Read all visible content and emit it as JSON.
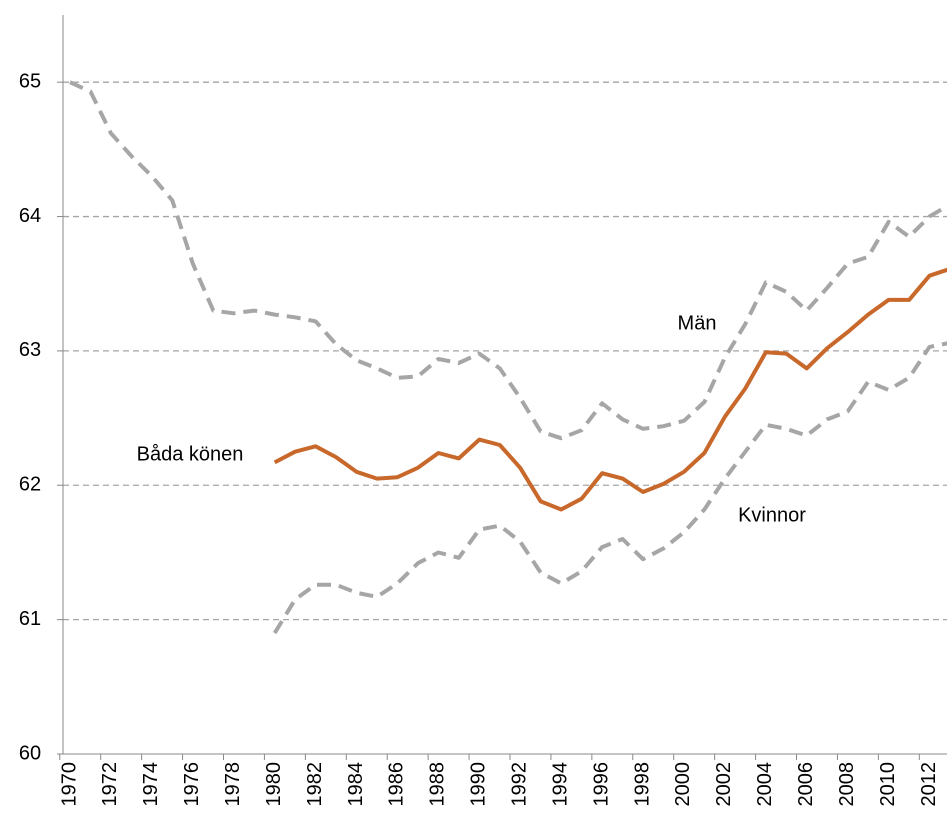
{
  "chart_data": {
    "type": "line",
    "x": [
      1970,
      1971,
      1972,
      1973,
      1974,
      1975,
      1976,
      1977,
      1978,
      1979,
      1980,
      1981,
      1982,
      1983,
      1984,
      1985,
      1986,
      1987,
      1988,
      1989,
      1990,
      1991,
      1992,
      1993,
      1994,
      1995,
      1996,
      1997,
      1998,
      1999,
      2000,
      2001,
      2002,
      2003,
      2004,
      2005,
      2006,
      2007,
      2008,
      2009,
      2010,
      2011,
      2012,
      2013
    ],
    "xlim": [
      1970,
      2013
    ],
    "xticks": [
      1970,
      1972,
      1974,
      1976,
      1978,
      1980,
      1982,
      1984,
      1986,
      1988,
      1990,
      1992,
      1994,
      1996,
      1998,
      2000,
      2002,
      2004,
      2006,
      2008,
      2010,
      2012
    ],
    "ylim": [
      60,
      65.5
    ],
    "yticks": [
      60,
      61,
      62,
      63,
      64,
      65
    ],
    "grid": true,
    "series": [
      {
        "name": "Män",
        "color": "#a6a6a6",
        "dashed": true,
        "values": [
          65.0,
          64.93,
          64.62,
          64.45,
          64.3,
          64.12,
          63.65,
          63.3,
          63.28,
          63.3,
          63.27,
          63.25,
          63.22,
          63.05,
          62.93,
          62.87,
          62.8,
          62.81,
          62.94,
          62.91,
          62.98,
          62.87,
          62.65,
          62.4,
          62.35,
          62.41,
          62.61,
          62.49,
          62.42,
          62.44,
          62.48,
          62.62,
          62.95,
          63.2,
          63.51,
          63.44,
          63.3,
          63.47,
          63.65,
          63.7,
          63.96,
          63.85,
          64.0,
          64.09
        ]
      },
      {
        "name": "Båda könen",
        "color": "#c8682a",
        "dashed": false,
        "values": [
          null,
          null,
          null,
          null,
          null,
          null,
          null,
          null,
          null,
          null,
          62.17,
          62.25,
          62.29,
          62.21,
          62.1,
          62.05,
          62.06,
          62.13,
          62.24,
          62.2,
          62.34,
          62.3,
          62.13,
          61.88,
          61.82,
          61.9,
          62.09,
          62.05,
          61.95,
          62.01,
          62.1,
          62.24,
          62.51,
          62.72,
          62.99,
          62.98,
          62.87,
          63.02,
          63.14,
          63.27,
          63.38,
          63.38,
          63.56,
          63.61
        ]
      },
      {
        "name": "Kvinnor",
        "color": "#a6a6a6",
        "dashed": true,
        "values": [
          null,
          null,
          null,
          null,
          null,
          null,
          null,
          null,
          null,
          null,
          60.9,
          61.15,
          61.26,
          61.26,
          61.2,
          61.17,
          61.27,
          61.42,
          61.5,
          61.46,
          61.67,
          61.7,
          61.58,
          61.35,
          61.27,
          61.36,
          61.54,
          61.6,
          61.45,
          61.53,
          61.65,
          61.82,
          62.05,
          62.25,
          62.45,
          62.42,
          62.37,
          62.49,
          62.55,
          62.77,
          62.71,
          62.8,
          63.03,
          63.06
        ]
      }
    ]
  }
}
